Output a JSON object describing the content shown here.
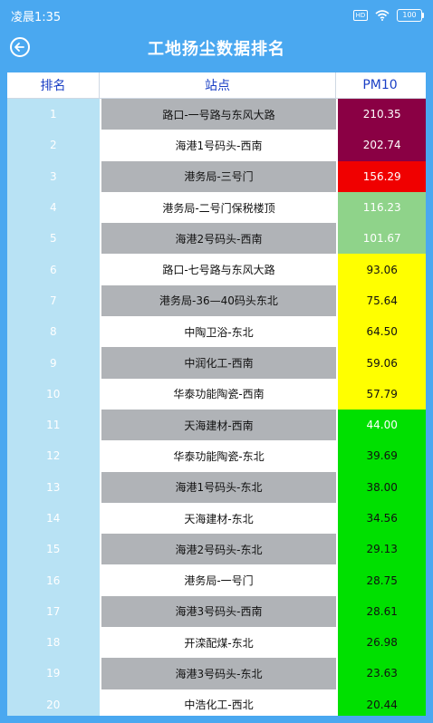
{
  "statusbar": {
    "time": "凌晨1:35",
    "battery": "100"
  },
  "header": {
    "title": "工地扬尘数据排名"
  },
  "table": {
    "columns": [
      "排名",
      "站点",
      "PM10"
    ],
    "rows": [
      {
        "rank": "1",
        "station": "路口-一号路与东风大路",
        "pm10": "210.35",
        "row_bg": "#b0b3b7",
        "pm_bg": "#8a0044",
        "pm_color": "#ffffff"
      },
      {
        "rank": "2",
        "station": "海港1号码头-西南",
        "pm10": "202.74",
        "row_bg": "#ffffff",
        "pm_bg": "#8a0044",
        "pm_color": "#ffffff"
      },
      {
        "rank": "3",
        "station": "港务局-三号门",
        "pm10": "156.29",
        "row_bg": "#b0b3b7",
        "pm_bg": "#f00000",
        "pm_color": "#ffffff"
      },
      {
        "rank": "4",
        "station": "港务局-二号门保税楼顶",
        "pm10": "116.23",
        "row_bg": "#ffffff",
        "pm_bg": "#8fd38a",
        "pm_color": "#ffffff"
      },
      {
        "rank": "5",
        "station": "海港2号码头-西南",
        "pm10": "101.67",
        "row_bg": "#b0b3b7",
        "pm_bg": "#8fd38a",
        "pm_color": "#ffffff"
      },
      {
        "rank": "6",
        "station": "路口-七号路与东风大路",
        "pm10": "93.06",
        "row_bg": "#ffffff",
        "pm_bg": "#ffff00",
        "pm_color": "#111111"
      },
      {
        "rank": "7",
        "station": "港务局-36—40码头东北",
        "pm10": "75.64",
        "row_bg": "#b0b3b7",
        "pm_bg": "#ffff00",
        "pm_color": "#111111"
      },
      {
        "rank": "8",
        "station": "中陶卫浴-东北",
        "pm10": "64.50",
        "row_bg": "#ffffff",
        "pm_bg": "#ffff00",
        "pm_color": "#111111"
      },
      {
        "rank": "9",
        "station": "中润化工-西南",
        "pm10": "59.06",
        "row_bg": "#b0b3b7",
        "pm_bg": "#ffff00",
        "pm_color": "#111111"
      },
      {
        "rank": "10",
        "station": "华泰功能陶瓷-西南",
        "pm10": "57.79",
        "row_bg": "#ffffff",
        "pm_bg": "#ffff00",
        "pm_color": "#111111"
      },
      {
        "rank": "11",
        "station": "天海建材-西南",
        "pm10": "44.00",
        "row_bg": "#b0b3b7",
        "pm_bg": "#00e000",
        "pm_color": "#ffffff"
      },
      {
        "rank": "12",
        "station": "华泰功能陶瓷-东北",
        "pm10": "39.69",
        "row_bg": "#ffffff",
        "pm_bg": "#00e000",
        "pm_color": "#111111"
      },
      {
        "rank": "13",
        "station": "海港1号码头-东北",
        "pm10": "38.00",
        "row_bg": "#b0b3b7",
        "pm_bg": "#00e000",
        "pm_color": "#111111"
      },
      {
        "rank": "14",
        "station": "天海建材-东北",
        "pm10": "34.56",
        "row_bg": "#ffffff",
        "pm_bg": "#00e000",
        "pm_color": "#111111"
      },
      {
        "rank": "15",
        "station": "海港2号码头-东北",
        "pm10": "29.13",
        "row_bg": "#b0b3b7",
        "pm_bg": "#00e000",
        "pm_color": "#111111"
      },
      {
        "rank": "16",
        "station": "港务局-一号门",
        "pm10": "28.75",
        "row_bg": "#ffffff",
        "pm_bg": "#00e000",
        "pm_color": "#111111"
      },
      {
        "rank": "17",
        "station": "海港3号码头-西南",
        "pm10": "28.61",
        "row_bg": "#b0b3b7",
        "pm_bg": "#00e000",
        "pm_color": "#111111"
      },
      {
        "rank": "18",
        "station": "开滦配煤-东北",
        "pm10": "26.98",
        "row_bg": "#ffffff",
        "pm_bg": "#00e000",
        "pm_color": "#111111"
      },
      {
        "rank": "19",
        "station": "海港3号码头-东北",
        "pm10": "23.63",
        "row_bg": "#b0b3b7",
        "pm_bg": "#00e000",
        "pm_color": "#111111"
      },
      {
        "rank": "20",
        "station": "中浩化工-西北",
        "pm10": "20.44",
        "row_bg": "#ffffff",
        "pm_bg": "#00e000",
        "pm_color": "#111111"
      }
    ]
  }
}
